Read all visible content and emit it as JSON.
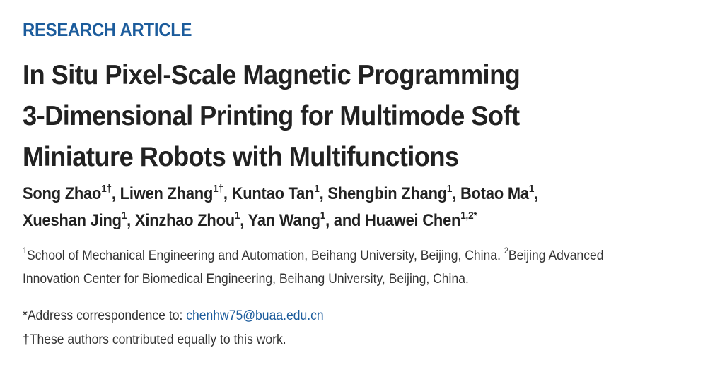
{
  "article_type": "RESEARCH ARTICLE",
  "title_lines": [
    "In Situ Pixel-Scale Magnetic Programming",
    "3-Dimensional Printing for Multimode Soft",
    "Miniature Robots with Multifunctions"
  ],
  "authors": [
    {
      "name": "Song Zhao",
      "sup": "1†",
      "sep": ", "
    },
    {
      "name": "Liwen Zhang",
      "sup": "1†",
      "sep": ", "
    },
    {
      "name": "Kuntao Tan",
      "sup": "1",
      "sep": ", "
    },
    {
      "name": "Shengbin Zhang",
      "sup": "1",
      "sep": ", "
    },
    {
      "name": "Botao Ma",
      "sup": "1",
      "sep": ","
    },
    {
      "name": "Xueshan Jing",
      "sup": "1",
      "sep": ", "
    },
    {
      "name": "Xinzhao Zhou",
      "sup": "1",
      "sep": ", "
    },
    {
      "name": "Yan Wang",
      "sup": "1",
      "sep": ", and "
    },
    {
      "name": "Huawei Chen",
      "sup": "1,2*",
      "sep": ""
    }
  ],
  "affiliations": {
    "line1_sup": "1",
    "line1_text": "School of Mechanical Engineering and Automation, Beihang University, Beijing, China. ",
    "line1_sup2": "2",
    "line1_text2": "Beijing Advanced",
    "line2_text": "Innovation Center for Biomedical Engineering, Beihang University, Beijing, China."
  },
  "correspondence": {
    "label": "*Address correspondence to: ",
    "email": "chenhw75@buaa.edu.cn"
  },
  "equal_contribution": "†These authors contributed equally to this work."
}
